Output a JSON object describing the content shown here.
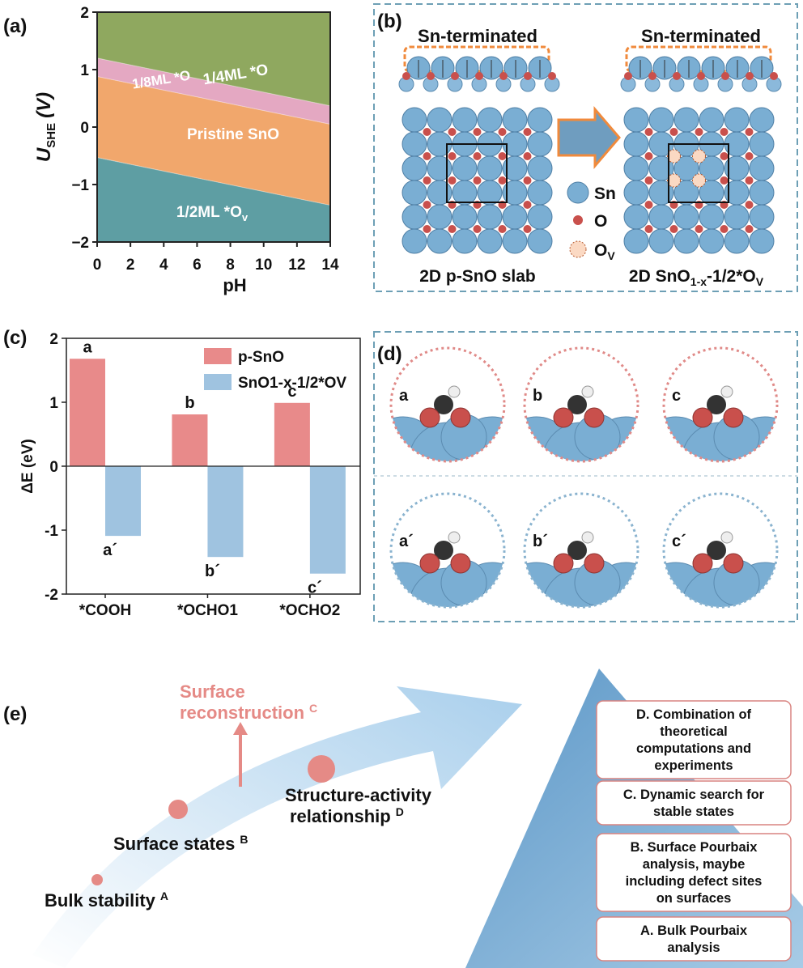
{
  "panel_a": {
    "label": "(a)",
    "type": "area",
    "xlabel": "pH",
    "ylabel": "U",
    "ylabel_sub": "SHE",
    "ylabel_unit": "(V)",
    "xlim": [
      0,
      14
    ],
    "xticks": [
      0,
      2,
      4,
      6,
      8,
      10,
      12,
      14
    ],
    "ylim": [
      -2,
      2
    ],
    "yticks": [
      {
        "value": -2,
        "label": "−2"
      },
      {
        "value": -1,
        "label": "−1"
      },
      0,
      1,
      2
    ],
    "x": [
      0,
      14
    ],
    "boundaries": [
      [
        1.2,
        0.37
      ],
      [
        0.88,
        0.05
      ],
      [
        -0.53,
        -1.36
      ]
    ],
    "regions": [
      {
        "name": "1/4ML *O",
        "color": "#8fa85f"
      },
      {
        "name": "1/8ML *O",
        "color": "#e4a8c2"
      },
      {
        "name": "Pristine SnO",
        "color": "#f1a76c"
      },
      {
        "name": "1/2ML *O",
        "sub": "v",
        "color": "#5e9ea3"
      }
    ]
  },
  "panel_b": {
    "label": "(b)",
    "left_title": "Sn-terminated",
    "right_title": "Sn-terminated",
    "left_caption": "2D p-SnO slab",
    "right_caption": [
      "2D SnO",
      "1-x",
      "-1/2*O",
      "V"
    ],
    "legend": {
      "sn": "Sn",
      "o": "O",
      "ov": [
        "O",
        "V"
      ]
    }
  },
  "panel_c": {
    "label": "(c)",
    "type": "bar",
    "ylabel": "ΔE (eV)",
    "categories": [
      "*COOH",
      "*OCHO1",
      "*OCHO2"
    ],
    "ylim": [
      -2,
      2
    ],
    "yticks": [
      -2,
      -1,
      0,
      1,
      2
    ],
    "series": [
      {
        "name": "p-SnO",
        "color": "#e88a8a",
        "values": [
          1.68,
          0.81,
          0.99
        ],
        "bar_labels": [
          "a",
          "b",
          "c"
        ]
      },
      {
        "name": "SnO1-x-1/2*OV",
        "color": "#9fc3e0",
        "values": [
          -1.09,
          -1.42,
          -1.68
        ],
        "bar_labels": [
          "a´",
          "b´",
          "c´"
        ]
      }
    ]
  },
  "panel_d": {
    "label": "(d)",
    "labels": [
      "a",
      "b",
      "c",
      "a´",
      "b´",
      "c´"
    ]
  },
  "panel_e": {
    "label": "(e)",
    "steps": [
      {
        "text": [
          "Bulk stability"
        ],
        "sup": "A"
      },
      {
        "text": [
          "Surface states"
        ],
        "sup": "B"
      },
      {
        "text": [
          "Structure-activity",
          "relationship"
        ],
        "sup": "D"
      },
      {
        "text": [
          "Surface",
          "reconstruction"
        ],
        "sup": "C"
      }
    ],
    "boxes": [
      [
        "D. Combination of",
        "theoretical",
        "computations and",
        "experiments"
      ],
      [
        "C. Dynamic search for",
        "stable states"
      ],
      [
        "B. Surface Pourbaix",
        "analysis, maybe",
        "including defect sites",
        "on surfaces"
      ],
      [
        "A. Bulk Pourbaix",
        "analysis"
      ]
    ]
  }
}
